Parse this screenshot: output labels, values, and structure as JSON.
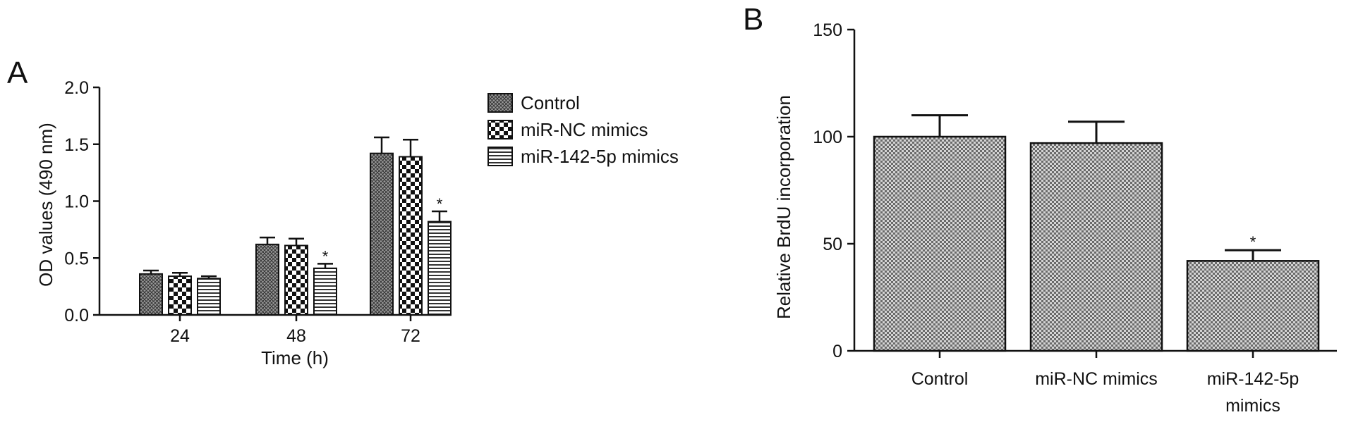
{
  "figure": {
    "panel_a_label": "A",
    "panel_b_label": "B"
  },
  "colors": {
    "axis": "#111111",
    "bar_stroke": "#111111",
    "ink": "#111111",
    "paper": "#ffffff"
  },
  "patterns": [
    "crosshatch",
    "checker",
    "horizontal-stripes"
  ],
  "chart_data": [
    {
      "panel": "A",
      "type": "bar",
      "title": "",
      "xlabel": "Time (h)",
      "ylabel": "OD values (490 nm)",
      "categories": [
        "24",
        "48",
        "72"
      ],
      "ylim": [
        0,
        2.0
      ],
      "yticks": [
        "0.0",
        "0.5",
        "1.0",
        "1.5",
        "2.0"
      ],
      "ytick_values": [
        0,
        0.5,
        1.0,
        1.5,
        2.0
      ],
      "grid": false,
      "legend": "right",
      "series": [
        {
          "name": "Control",
          "values": [
            0.36,
            0.62,
            1.42
          ],
          "errors": [
            0.03,
            0.06,
            0.14
          ],
          "sig": [
            "",
            "",
            ""
          ]
        },
        {
          "name": "miR-NC mimics",
          "values": [
            0.34,
            0.61,
            1.39
          ],
          "errors": [
            0.03,
            0.06,
            0.15
          ],
          "sig": [
            "",
            "",
            ""
          ]
        },
        {
          "name": "miR-142-5p mimics",
          "values": [
            0.32,
            0.41,
            0.82
          ],
          "errors": [
            0.02,
            0.04,
            0.09
          ],
          "sig": [
            "",
            "*",
            "*"
          ]
        }
      ]
    },
    {
      "panel": "B",
      "type": "bar",
      "title": "",
      "xlabel": "",
      "ylabel": "Relative BrdU incorporation",
      "categories": [
        [
          "Control"
        ],
        [
          "miR-NC mimics"
        ],
        [
          "miR-142-5p",
          "mimics"
        ]
      ],
      "ylim": [
        0,
        150
      ],
      "yticks": [
        "0",
        "50",
        "100",
        "150"
      ],
      "ytick_values": [
        0,
        50,
        100,
        150
      ],
      "grid": false,
      "values": [
        100,
        97,
        42
      ],
      "errors": [
        10,
        10,
        5
      ],
      "sig": [
        "",
        "",
        "*"
      ]
    }
  ]
}
